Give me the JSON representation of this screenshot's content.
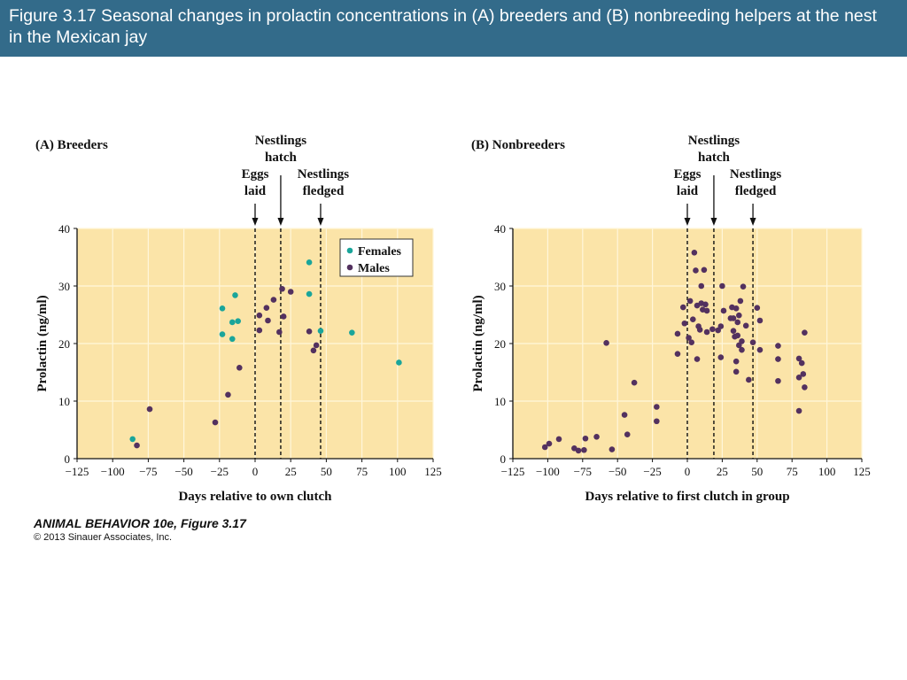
{
  "slide_title": "Figure 3.17  Seasonal changes in prolactin concentrations in (A) breeders and (B) nonbreeding helpers at the nest in the Mexican jay",
  "credit": {
    "book": "ANIMAL BEHAVIOR 10e, Figure 3.17",
    "copyright": "© 2013 Sinauer Associates, Inc."
  },
  "colors": {
    "title_bar": "#336b8a",
    "plot_background": "#fbe4a8",
    "gridline": "#fff6da",
    "females": "#1aa59a",
    "males": "#53315f"
  },
  "chart_data": [
    {
      "type": "scatter",
      "panel_label": "(A)  Breeders",
      "xlabel": "Days relative to own clutch",
      "ylabel": "Prolactin (ng/ml)",
      "xlim": [
        -125,
        125
      ],
      "ylim": [
        0,
        40
      ],
      "xticks": [
        -125,
        -100,
        -75,
        -50,
        -25,
        0,
        25,
        50,
        75,
        100,
        125
      ],
      "yticks": [
        0,
        10,
        20,
        30,
        40
      ],
      "grid": true,
      "legend": {
        "placement": "top-right",
        "entries": [
          "Females",
          "Males"
        ]
      },
      "events": [
        {
          "x": 0,
          "label": [
            "Eggs",
            "laid"
          ]
        },
        {
          "x": 18,
          "label": [
            "Nestlings",
            "hatch"
          ]
        },
        {
          "x": 46,
          "label": [
            "Nestlings",
            "fledged"
          ]
        }
      ],
      "series": [
        {
          "name": "Females",
          "points": [
            [
              -86,
              3.4
            ],
            [
              -23,
              26.1
            ],
            [
              -23,
              21.6
            ],
            [
              -16,
              23.7
            ],
            [
              -14,
              28.4
            ],
            [
              -12,
              23.9
            ],
            [
              -16,
              20.8
            ],
            [
              38,
              34.1
            ],
            [
              38,
              28.6
            ],
            [
              46,
              22.2
            ],
            [
              68,
              21.9
            ],
            [
              101,
              16.7
            ]
          ]
        },
        {
          "name": "Males",
          "points": [
            [
              -83,
              2.3
            ],
            [
              -74,
              8.6
            ],
            [
              -28,
              6.3
            ],
            [
              -19,
              11.1
            ],
            [
              -11,
              15.8
            ],
            [
              3,
              22.3
            ],
            [
              3,
              24.9
            ],
            [
              8,
              26.2
            ],
            [
              9,
              24.0
            ],
            [
              13,
              27.6
            ],
            [
              17,
              22.0
            ],
            [
              19,
              29.5
            ],
            [
              20,
              24.7
            ],
            [
              25,
              29.0
            ],
            [
              38,
              22.1
            ],
            [
              41,
              18.8
            ],
            [
              43,
              19.7
            ]
          ]
        }
      ]
    },
    {
      "type": "scatter",
      "panel_label": "(B)  Nonbreeders",
      "xlabel": "Days relative to first clutch in group",
      "ylabel": "Prolactin (ng/ml)",
      "xlim": [
        -125,
        125
      ],
      "ylim": [
        0,
        40
      ],
      "xticks": [
        -125,
        -100,
        -75,
        -50,
        -25,
        0,
        25,
        50,
        75,
        100,
        125
      ],
      "yticks": [
        0,
        10,
        20,
        30,
        40
      ],
      "grid": true,
      "events": [
        {
          "x": 0,
          "label": [
            "Eggs",
            "laid"
          ]
        },
        {
          "x": 19,
          "label": [
            "Nestlings",
            "hatch"
          ]
        },
        {
          "x": 47,
          "label": [
            "Nestlings",
            "fledged"
          ]
        }
      ],
      "series": [
        {
          "name": "Males",
          "points": [
            [
              -102,
              2.0
            ],
            [
              -99,
              2.6
            ],
            [
              -92,
              3.4
            ],
            [
              -81,
              1.8
            ],
            [
              -78,
              1.4
            ],
            [
              -74,
              1.5
            ],
            [
              -73,
              3.5
            ],
            [
              -65,
              3.8
            ],
            [
              -58,
              20.1
            ],
            [
              -54,
              1.6
            ],
            [
              -45,
              7.6
            ],
            [
              -43,
              4.2
            ],
            [
              -38,
              13.2
            ],
            [
              -22,
              9.0
            ],
            [
              -22,
              6.5
            ],
            [
              -7,
              18.2
            ],
            [
              -7,
              21.7
            ],
            [
              -3,
              26.3
            ],
            [
              -2,
              23.5
            ],
            [
              1,
              21.0
            ],
            [
              2,
              27.4
            ],
            [
              3,
              20.2
            ],
            [
              4,
              24.2
            ],
            [
              5,
              35.8
            ],
            [
              6,
              32.7
            ],
            [
              7,
              17.3
            ],
            [
              7,
              26.6
            ],
            [
              8,
              23.0
            ],
            [
              9,
              22.4
            ],
            [
              10,
              30.0
            ],
            [
              10,
              27.0
            ],
            [
              11,
              25.9
            ],
            [
              12,
              32.8
            ],
            [
              13,
              26.8
            ],
            [
              14,
              25.7
            ],
            [
              14,
              22.0
            ],
            [
              18,
              22.5
            ],
            [
              22,
              22.3
            ],
            [
              24,
              23.0
            ],
            [
              24,
              17.6
            ],
            [
              25,
              30.0
            ],
            [
              26,
              25.7
            ],
            [
              31,
              24.4
            ],
            [
              32,
              26.3
            ],
            [
              33,
              22.2
            ],
            [
              33,
              24.4
            ],
            [
              34,
              21.2
            ],
            [
              35,
              16.9
            ],
            [
              35,
              15.1
            ],
            [
              35,
              26.1
            ],
            [
              36,
              23.7
            ],
            [
              36,
              21.4
            ],
            [
              37,
              19.7
            ],
            [
              37,
              24.9
            ],
            [
              38,
              27.4
            ],
            [
              39,
              20.4
            ],
            [
              39,
              18.9
            ],
            [
              40,
              29.9
            ],
            [
              42,
              23.1
            ],
            [
              44,
              13.7
            ],
            [
              47,
              20.2
            ],
            [
              50,
              26.2
            ],
            [
              52,
              24.0
            ],
            [
              52,
              18.9
            ],
            [
              65,
              19.6
            ],
            [
              65,
              17.3
            ],
            [
              65,
              13.5
            ],
            [
              80,
              8.3
            ],
            [
              80,
              17.4
            ],
            [
              80,
              14.1
            ],
            [
              82,
              16.6
            ],
            [
              83,
              14.7
            ],
            [
              84,
              12.4
            ],
            [
              84,
              21.9
            ]
          ]
        }
      ]
    }
  ]
}
